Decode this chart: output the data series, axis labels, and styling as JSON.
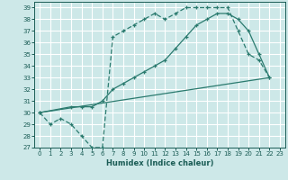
{
  "xlabel": "Humidex (Indice chaleur)",
  "bg_color": "#cde8e8",
  "grid_color": "#ffffff",
  "line_color": "#2a7a6e",
  "xlim": [
    -0.5,
    23.5
  ],
  "ylim": [
    27,
    39.5
  ],
  "xticks": [
    0,
    1,
    2,
    3,
    4,
    5,
    6,
    7,
    8,
    9,
    10,
    11,
    12,
    13,
    14,
    15,
    16,
    17,
    18,
    19,
    20,
    21,
    22,
    23
  ],
  "yticks": [
    27,
    28,
    29,
    30,
    31,
    32,
    33,
    34,
    35,
    36,
    37,
    38,
    39
  ],
  "line1_x": [
    0,
    1,
    2,
    3,
    4,
    5,
    6,
    7,
    8,
    9,
    10,
    11,
    12,
    13,
    14,
    15,
    16,
    17,
    18,
    19,
    20,
    21,
    22
  ],
  "line1_y": [
    30,
    29,
    29.5,
    29,
    28,
    27,
    27,
    36.5,
    37,
    37.5,
    38,
    38.5,
    38,
    38.5,
    39,
    39,
    39,
    39,
    39,
    37,
    35,
    34.5,
    33
  ],
  "line2_x": [
    0,
    3,
    4,
    5,
    6,
    7,
    8,
    9,
    10,
    11,
    12,
    13,
    14,
    15,
    16,
    17,
    18,
    19,
    20,
    21,
    22
  ],
  "line2_y": [
    30,
    30.5,
    30.5,
    30.5,
    31,
    32,
    32.5,
    33,
    33.5,
    34,
    34.5,
    35.5,
    36.5,
    37.5,
    38,
    38.5,
    38.5,
    38,
    37,
    35,
    33
  ],
  "line3_x": [
    0,
    22
  ],
  "line3_y": [
    30,
    33
  ],
  "xlabel_fontsize": 6,
  "tick_fontsize": 5
}
